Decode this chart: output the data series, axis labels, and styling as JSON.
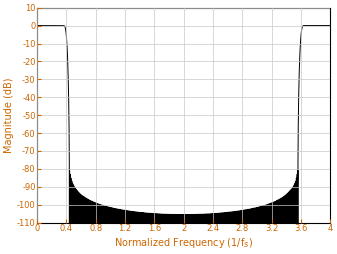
{
  "title": "",
  "xlabel": "Normalized Frequency (1/f$_S$)",
  "ylabel": "Magnitude (dB)",
  "xlim": [
    0,
    4
  ],
  "ylim": [
    -110,
    10
  ],
  "xticks": [
    0,
    0.4,
    0.8,
    1.2,
    1.6,
    2.0,
    2.4,
    2.8,
    3.2,
    3.6,
    4.0
  ],
  "yticks": [
    10,
    0,
    -10,
    -20,
    -30,
    -40,
    -50,
    -60,
    -70,
    -80,
    -90,
    -100,
    -110
  ],
  "line_color": "#000000",
  "grid_color": "#c8c8c8",
  "axis_label_color": "#cc6600",
  "bg_color": "#ffffff",
  "figsize": [
    3.37,
    2.54
  ],
  "dpi": 100
}
